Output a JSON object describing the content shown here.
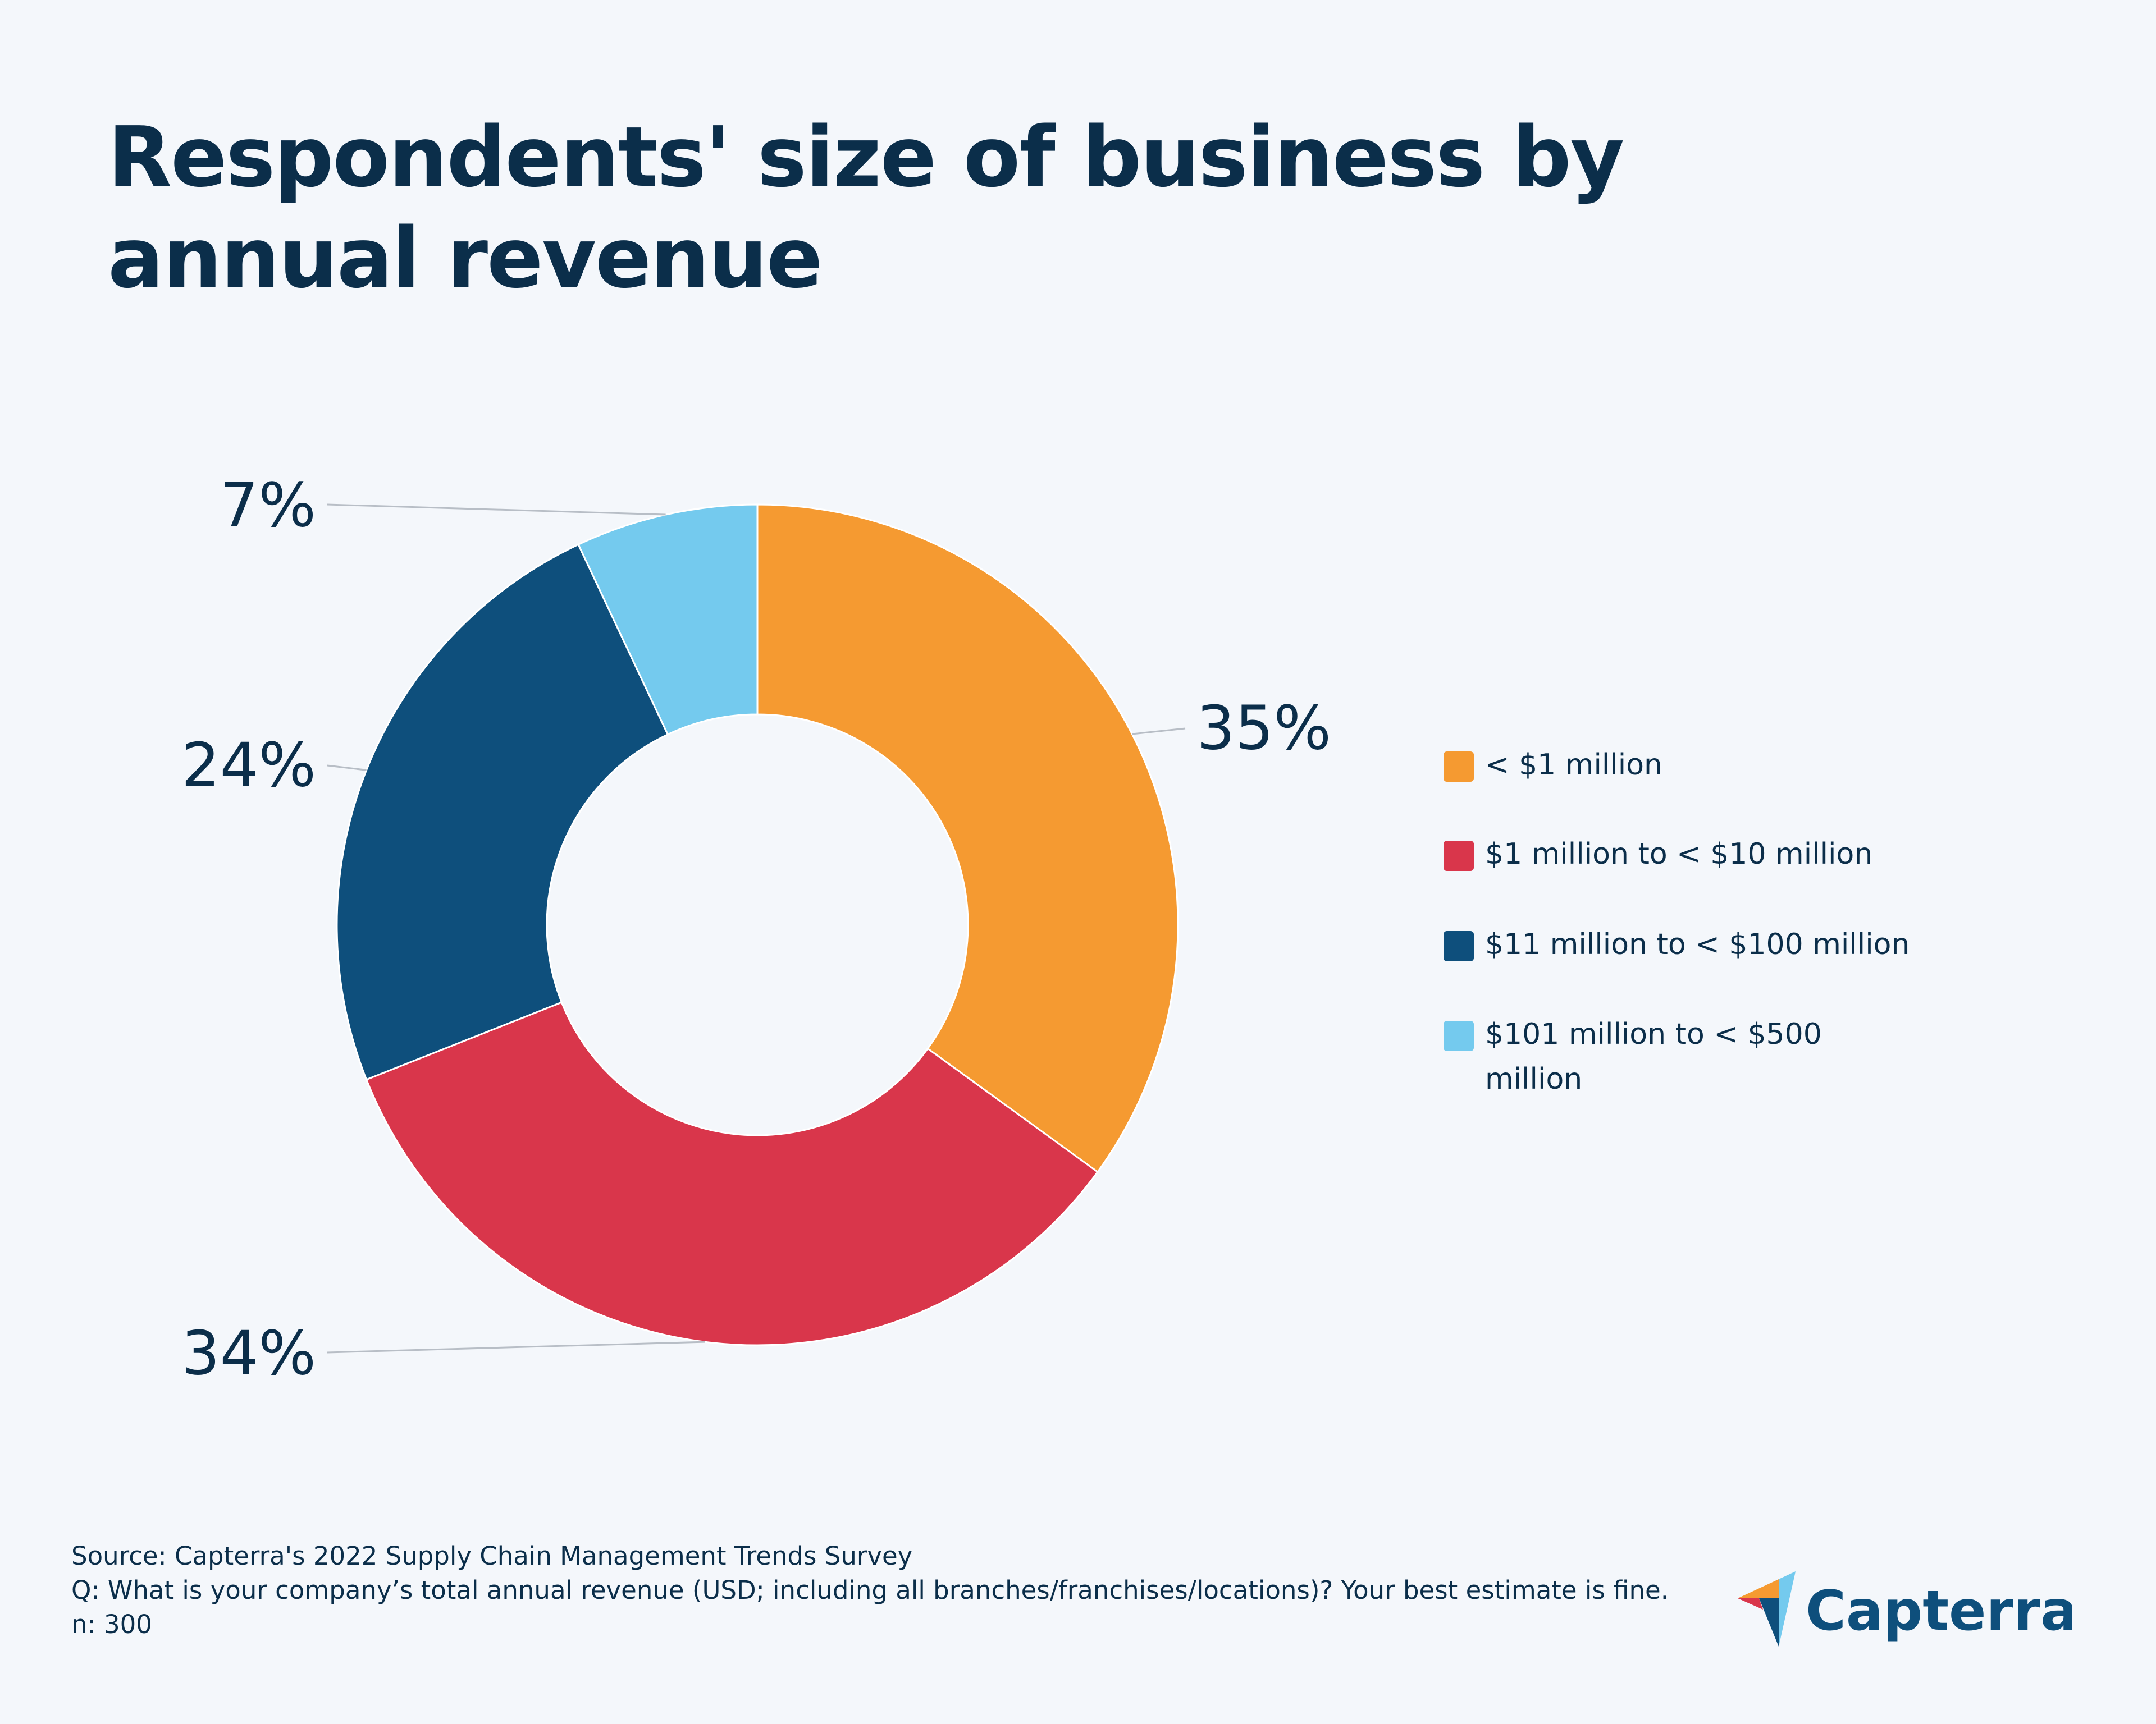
{
  "title": "Respondents' size of business by annual revenue",
  "chart_data": {
    "type": "pie",
    "subtype": "donut",
    "categories": [
      "< $1 million",
      "$1 million to < $10 million",
      "$11 million to < $100 million",
      "$101 million to < $500 million"
    ],
    "values": [
      35,
      34,
      24,
      7
    ],
    "data_labels": [
      "35%",
      "34%",
      "24%",
      "7%"
    ],
    "colors": [
      "#f59a31",
      "#d9364b",
      "#0e4f7c",
      "#74caee"
    ],
    "legend_position": "right"
  },
  "footer": {
    "source": "Source: Capterra's 2022 Supply Chain Management Trends Survey",
    "question": "Q: What is your company’s total annual revenue (USD; including all branches/franchises/locations)? Your best estimate is fine.",
    "n": "n: 300"
  },
  "logo": {
    "text": "Capterra",
    "colors": [
      "#f59a31",
      "#d9364b",
      "#0e4f7c",
      "#74caee"
    ]
  }
}
